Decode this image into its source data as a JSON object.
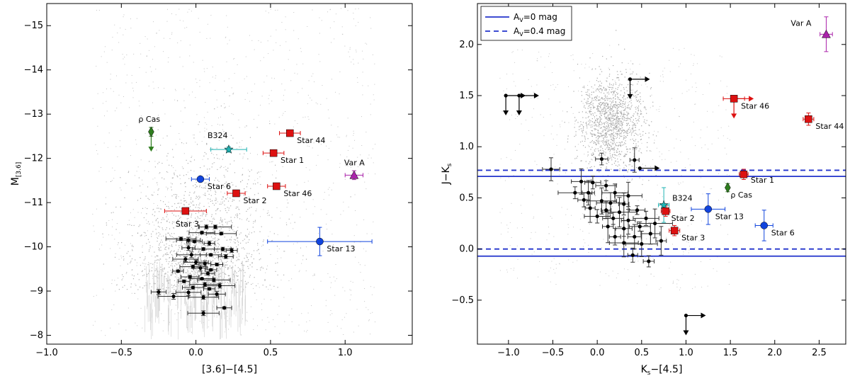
{
  "chart_data": [
    {
      "type": "scatter",
      "xlabel": "[3.6]−[4.5]",
      "ylabel": "M[3.6]",
      "ylabel_main": "M",
      "ylabel_sub": "[3.6]",
      "xlim": [
        -1.0,
        1.45
      ],
      "ylim": [
        -7.8,
        -15.5
      ],
      "xticks": [
        -1.0,
        -0.5,
        0.0,
        0.5,
        1.0
      ],
      "xtick_labels": [
        "−1.0",
        "−0.5",
        "0.0",
        "0.5",
        "1.0"
      ],
      "yticks": [
        -8,
        -9,
        -10,
        -11,
        -12,
        -13,
        -14,
        -15
      ],
      "ytick_labels": [
        "−8",
        "−9",
        "−10",
        "−11",
        "−12",
        "−13",
        "−14",
        "−15"
      ],
      "labeled_points": [
        {
          "name": "ρ Cas",
          "x": -0.3,
          "y": -12.6,
          "xerr": 0.0,
          "yerr": 0.1,
          "marker": "diamond",
          "color": "#2e7d1e",
          "upper_limit": true
        },
        {
          "name": "B324",
          "x": 0.22,
          "y": -12.2,
          "xerr": 0.12,
          "yerr": 0.06,
          "marker": "star",
          "color": "#1fb3b3"
        },
        {
          "name": "Star 44",
          "x": 0.63,
          "y": -12.57,
          "xerr": 0.07,
          "yerr": 0.05,
          "marker": "square",
          "color": "#dd1111"
        },
        {
          "name": "Star 1",
          "x": 0.52,
          "y": -12.12,
          "xerr": 0.07,
          "yerr": 0.05,
          "marker": "square",
          "color": "#dd1111"
        },
        {
          "name": "Var A",
          "x": 1.06,
          "y": -11.62,
          "xerr": 0.06,
          "yerr": 0.1,
          "marker": "triangle",
          "color": "#aa22aa"
        },
        {
          "name": "Star 6",
          "x": 0.03,
          "y": -11.53,
          "xerr": 0.06,
          "yerr": 0.05,
          "marker": "circle",
          "color": "#1144dd"
        },
        {
          "name": "Star 46",
          "x": 0.54,
          "y": -11.37,
          "xerr": 0.06,
          "yerr": 0.05,
          "marker": "square",
          "color": "#dd1111"
        },
        {
          "name": "Star 2",
          "x": 0.27,
          "y": -11.21,
          "xerr": 0.06,
          "yerr": 0.05,
          "marker": "square",
          "color": "#dd1111"
        },
        {
          "name": "Star 3",
          "x": -0.07,
          "y": -10.81,
          "xerr": 0.14,
          "yerr": 0.05,
          "marker": "square",
          "color": "#dd1111"
        },
        {
          "name": "Star 13",
          "x": 0.83,
          "y": -10.12,
          "xerr": 0.35,
          "yerr": 0.32,
          "marker": "circle",
          "color": "#1144dd"
        }
      ],
      "black_points": [
        {
          "x": 0.07,
          "y": -10.45
        },
        {
          "x": 0.13,
          "y": -10.45
        },
        {
          "x": 0.04,
          "y": -10.32
        },
        {
          "x": 0.17,
          "y": -10.3
        },
        {
          "x": -0.1,
          "y": -10.18
        },
        {
          "x": -0.05,
          "y": -10.15
        },
        {
          "x": -0.01,
          "y": -10.12
        },
        {
          "x": 0.09,
          "y": -10.08
        },
        {
          "x": -0.05,
          "y": -9.98
        },
        {
          "x": 0.05,
          "y": -9.95
        },
        {
          "x": 0.18,
          "y": -9.95
        },
        {
          "x": 0.24,
          "y": -9.92
        },
        {
          "x": -0.03,
          "y": -9.82
        },
        {
          "x": 0.1,
          "y": -9.82
        },
        {
          "x": 0.2,
          "y": -9.78
        },
        {
          "x": -0.07,
          "y": -9.72
        },
        {
          "x": 0.0,
          "y": -9.65
        },
        {
          "x": 0.06,
          "y": -9.62
        },
        {
          "x": 0.14,
          "y": -9.6
        },
        {
          "x": -0.02,
          "y": -9.55
        },
        {
          "x": 0.03,
          "y": -9.52
        },
        {
          "x": 0.1,
          "y": -9.48
        },
        {
          "x": -0.12,
          "y": -9.45
        },
        {
          "x": 0.08,
          "y": -9.4
        },
        {
          "x": -0.04,
          "y": -9.32
        },
        {
          "x": 0.04,
          "y": -9.28
        },
        {
          "x": 0.12,
          "y": -9.25
        },
        {
          "x": -0.08,
          "y": -9.22
        },
        {
          "x": 0.06,
          "y": -9.15
        },
        {
          "x": 0.16,
          "y": -9.12
        },
        {
          "x": -0.02,
          "y": -9.08
        },
        {
          "x": 0.09,
          "y": -9.05
        },
        {
          "x": -0.25,
          "y": -8.98
        },
        {
          "x": -0.05,
          "y": -8.97
        },
        {
          "x": 0.14,
          "y": -8.93
        },
        {
          "x": -0.15,
          "y": -8.88
        },
        {
          "x": 0.05,
          "y": -8.86
        },
        {
          "x": 0.19,
          "y": -8.62
        },
        {
          "x": 0.05,
          "y": -8.5
        }
      ],
      "background_field": "grey field-star population"
    },
    {
      "type": "scatter",
      "xlabel": "Ks−[4.5]",
      "xlabel_main": "K",
      "xlabel_sub": "s",
      "xlabel_rest": "−[4.5]",
      "ylabel": "J−Ks",
      "ylabel_main": "J−K",
      "ylabel_sub": "s",
      "xlim": [
        -1.35,
        2.8
      ],
      "ylim": [
        -0.93,
        2.4
      ],
      "xticks": [
        -1.0,
        -0.5,
        0.0,
        0.5,
        1.0,
        1.5,
        2.0,
        2.5
      ],
      "xtick_labels": [
        "−1.0",
        "−0.5",
        "0.0",
        "0.5",
        "1.0",
        "1.5",
        "2.0",
        "2.5"
      ],
      "yticks": [
        -0.5,
        0.0,
        0.5,
        1.0,
        1.5,
        2.0
      ],
      "ytick_labels": [
        "−0.5",
        "0.0",
        "0.5",
        "1.0",
        "1.5",
        "2.0"
      ],
      "reference_lines": [
        {
          "name": "AV=0 mag",
          "style": "solid",
          "color": "#2233cc",
          "y_values": [
            0.71,
            -0.07
          ]
        },
        {
          "name": "AV=0.4 mag",
          "style": "dashed",
          "color": "#2233cc",
          "y_values": [
            0.77,
            0.0
          ]
        }
      ],
      "legend": [
        {
          "text": "A",
          "sub": "V",
          "rest": "=0 mag",
          "style": "solid"
        },
        {
          "text": "A",
          "sub": "V",
          "rest": "=0.4 mag",
          "style": "dashed"
        }
      ],
      "legend_position": "top-left",
      "labeled_points": [
        {
          "name": "Var A",
          "x": 2.58,
          "y": 2.1,
          "xerr": 0.07,
          "yerr": 0.17,
          "marker": "triangle",
          "color": "#aa22aa"
        },
        {
          "name": "Star 46",
          "x": 1.54,
          "y": 1.47,
          "xerr": 0.12,
          "yerr": 0.0,
          "marker": "square",
          "color": "#dd1111",
          "limit_right": true,
          "limit_down": true
        },
        {
          "name": "Star 44",
          "x": 2.38,
          "y": 1.27,
          "xerr": 0.06,
          "yerr": 0.06,
          "marker": "square",
          "color": "#dd1111"
        },
        {
          "name": "Star 1",
          "x": 1.65,
          "y": 0.73,
          "xerr": 0.05,
          "yerr": 0.05,
          "marker": "square",
          "color": "#dd1111"
        },
        {
          "name": "ρ Cas",
          "x": 1.47,
          "y": 0.6,
          "xerr": 0.0,
          "yerr": 0.04,
          "marker": "diamond",
          "color": "#2e7d1e"
        },
        {
          "name": "B324",
          "x": 0.75,
          "y": 0.43,
          "xerr": 0.06,
          "yerr": 0.17,
          "marker": "star",
          "color": "#1fb3b3"
        },
        {
          "name": "Star 2",
          "x": 0.77,
          "y": 0.37,
          "xerr": 0.05,
          "yerr": 0.05,
          "marker": "square",
          "color": "#dd1111"
        },
        {
          "name": "Star 13",
          "x": 1.25,
          "y": 0.39,
          "xerr": 0.19,
          "yerr": 0.15,
          "marker": "circle",
          "color": "#1144dd"
        },
        {
          "name": "Star 3",
          "x": 0.87,
          "y": 0.18,
          "xerr": 0.06,
          "yerr": 0.05,
          "marker": "square",
          "color": "#dd1111"
        },
        {
          "name": "Star 6",
          "x": 1.88,
          "y": 0.23,
          "xerr": 0.1,
          "yerr": 0.15,
          "marker": "circle",
          "color": "#1144dd"
        }
      ],
      "black_points": [
        {
          "x": -0.52,
          "y": 0.78
        },
        {
          "x": 0.05,
          "y": 0.88
        },
        {
          "x": 0.42,
          "y": 0.87
        },
        {
          "x": -0.18,
          "y": 0.66
        },
        {
          "x": -0.05,
          "y": 0.65
        },
        {
          "x": 0.1,
          "y": 0.62
        },
        {
          "x": -0.25,
          "y": 0.55
        },
        {
          "x": -0.1,
          "y": 0.55
        },
        {
          "x": 0.2,
          "y": 0.55
        },
        {
          "x": 0.35,
          "y": 0.52
        },
        {
          "x": -0.15,
          "y": 0.48
        },
        {
          "x": 0.05,
          "y": 0.47
        },
        {
          "x": 0.15,
          "y": 0.45
        },
        {
          "x": 0.3,
          "y": 0.44
        },
        {
          "x": -0.08,
          "y": 0.4
        },
        {
          "x": 0.1,
          "y": 0.38
        },
        {
          "x": 0.25,
          "y": 0.36
        },
        {
          "x": 0.45,
          "y": 0.38
        },
        {
          "x": 0.0,
          "y": 0.32
        },
        {
          "x": 0.18,
          "y": 0.3
        },
        {
          "x": 0.35,
          "y": 0.28
        },
        {
          "x": 0.55,
          "y": 0.3
        },
        {
          "x": 0.12,
          "y": 0.22
        },
        {
          "x": 0.3,
          "y": 0.2
        },
        {
          "x": 0.48,
          "y": 0.22
        },
        {
          "x": 0.65,
          "y": 0.25
        },
        {
          "x": 0.2,
          "y": 0.12
        },
        {
          "x": 0.42,
          "y": 0.12
        },
        {
          "x": 0.6,
          "y": 0.15
        },
        {
          "x": 0.3,
          "y": 0.06
        },
        {
          "x": 0.5,
          "y": 0.05
        },
        {
          "x": 0.72,
          "y": 0.08
        },
        {
          "x": 0.4,
          "y": -0.06
        },
        {
          "x": 0.58,
          "y": -0.12
        }
      ],
      "limit_points": [
        {
          "x": -1.03,
          "y": 1.5,
          "right": true,
          "down": true
        },
        {
          "x": -0.88,
          "y": 1.5,
          "right": true,
          "down": true
        },
        {
          "x": 0.37,
          "y": 1.66,
          "right": true,
          "down": true
        },
        {
          "x": 0.48,
          "y": 0.79,
          "right": true,
          "down": false
        },
        {
          "x": 1.0,
          "y": -0.65,
          "right": true,
          "down": true
        }
      ],
      "background_field": "grey field-star population"
    }
  ]
}
